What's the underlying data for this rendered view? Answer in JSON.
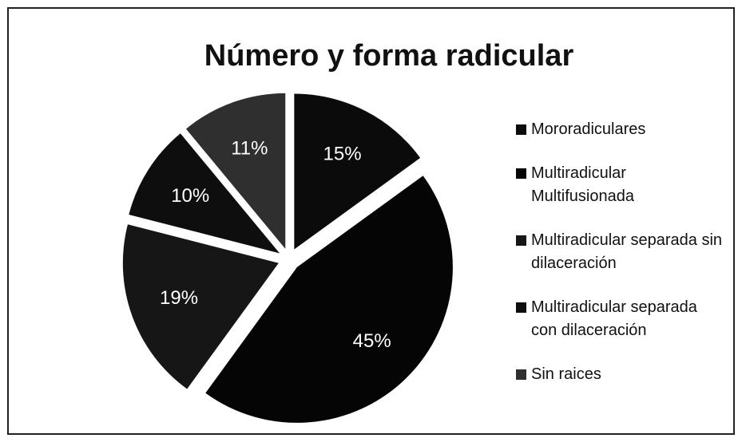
{
  "chart_data": {
    "type": "pie",
    "title": "Número y forma radicular",
    "categories": [
      "Mororadiculares",
      "Multiradicular Multifusionada",
      "Multiradicular separada sin dilaceración",
      "Multiradicular separada con dilaceración",
      "Sin raices"
    ],
    "values": [
      15,
      45,
      19,
      10,
      11
    ],
    "value_labels": [
      "15%",
      "45%",
      "19%",
      "10%",
      "11%"
    ],
    "colors": [
      "#0b0b0b",
      "#050505",
      "#161616",
      "#0e0e0e",
      "#2f2f2f"
    ],
    "legend": "right"
  }
}
